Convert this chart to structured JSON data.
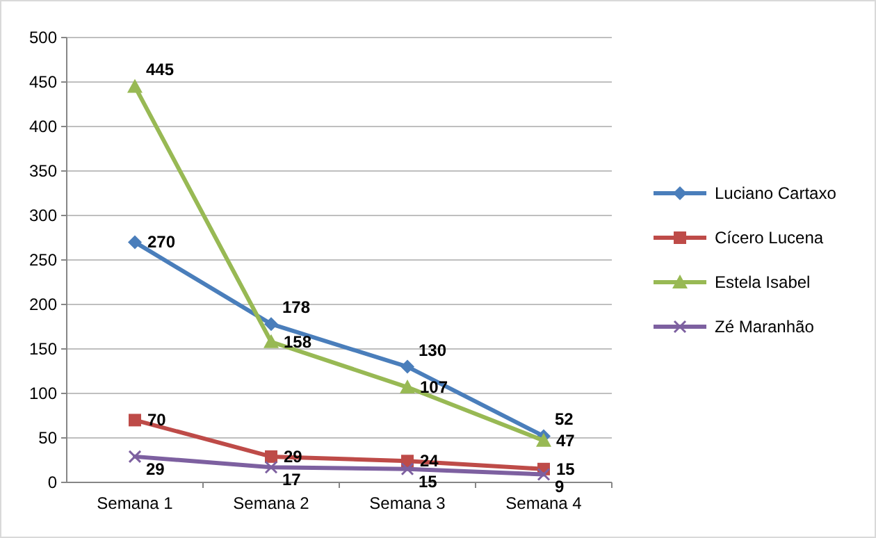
{
  "chart_data": {
    "type": "line",
    "categories": [
      "Semana 1",
      "Semana 2",
      "Semana 3",
      "Semana 4"
    ],
    "series": [
      {
        "name": "Luciano Cartaxo",
        "color": "#4a7ebb",
        "marker": "diamond",
        "values": [
          270,
          178,
          130,
          52
        ]
      },
      {
        "name": "Cícero Lucena",
        "color": "#be4b48",
        "marker": "square",
        "values": [
          70,
          29,
          24,
          15
        ]
      },
      {
        "name": "Estela Isabel",
        "color": "#98b954",
        "marker": "triangle",
        "values": [
          445,
          158,
          107,
          47
        ]
      },
      {
        "name": "Zé Maranhão",
        "color": "#7d60a0",
        "marker": "cross",
        "values": [
          29,
          17,
          15,
          9
        ]
      }
    ],
    "ylim": [
      0,
      500
    ],
    "yticks": [
      0,
      50,
      100,
      150,
      200,
      250,
      300,
      350,
      400,
      450,
      500
    ],
    "grid": "y",
    "legend": "right",
    "data_labels": true
  }
}
